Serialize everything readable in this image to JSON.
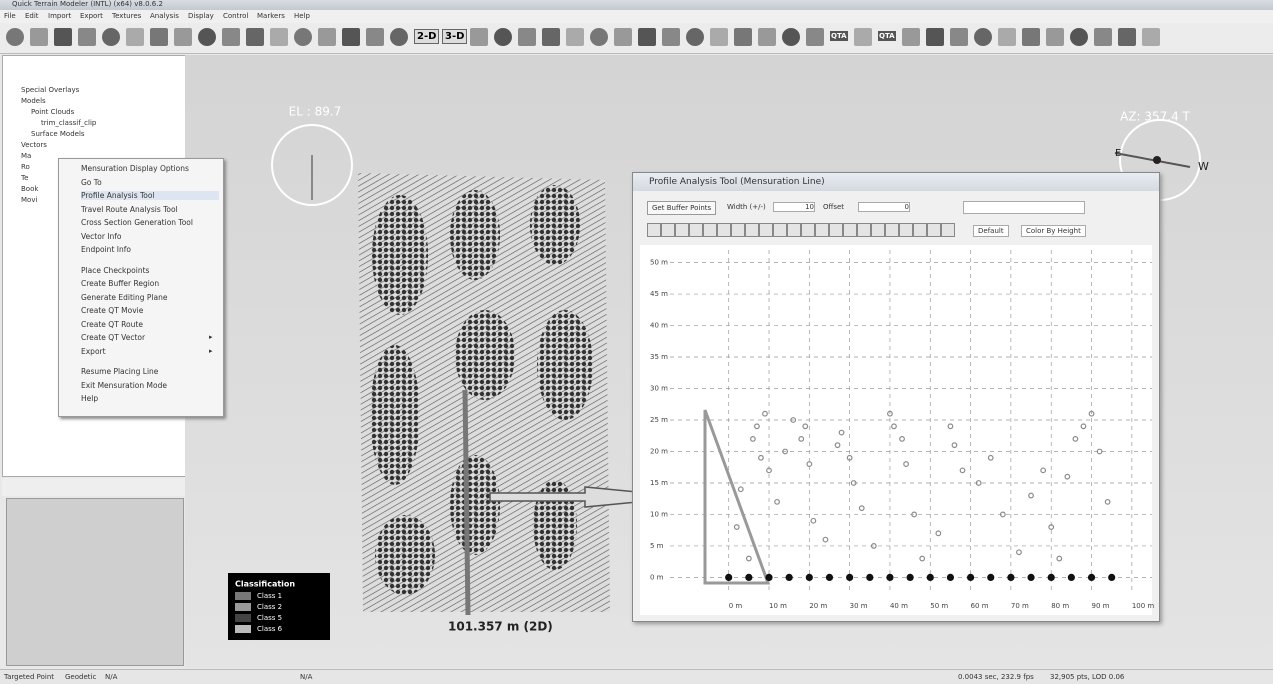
{
  "window_title": "Quick Terrain Modeler (INTL) (x64) v8.0.6.2",
  "menu": [
    "File",
    "Edit",
    "Import",
    "Export",
    "Textures",
    "Analysis",
    "Display",
    "Control",
    "Markers",
    "Help"
  ],
  "toolbar": {
    "two_d": "2-D",
    "three_d": "3-D",
    "qta1": "QTA",
    "qta2": "QTA"
  },
  "tree": [
    "Special Overlays",
    "Models",
    "Point Clouds",
    "trim_classif_clip",
    "Surface Models",
    "Vectors",
    "Ma",
    "Ro",
    "Te",
    "Book",
    "Movi"
  ],
  "context_menu": [
    "Mensuration Display Options",
    "Go To",
    "Profile Analysis Tool",
    "Travel Route Analysis Tool",
    "Cross Section Generation Tool",
    "Vector Info",
    "Endpoint Info",
    "Place Checkpoints",
    "Create Buffer Region",
    "Generate Editing Plane",
    "Create QT Movie",
    "Create QT Route",
    "Create QT Vector",
    "Export",
    "Resume Placing Line",
    "Exit Mensuration Mode",
    "Help"
  ],
  "view": {
    "elevation": "EL : 89.7",
    "azimuth": "AZ: 357.4 T",
    "east": "E",
    "west": "W",
    "measurement": "101.357 m (2D)"
  },
  "legend": {
    "title": "Classification",
    "items": [
      "Class 1",
      "Class 2",
      "Class 5",
      "Class 6"
    ]
  },
  "profile_window": {
    "title": "Profile Analysis Tool (Mensuration Line)",
    "get_buffer": "Get Buffer Points",
    "width_label": "Width (+/-)",
    "width_value": "10",
    "offset_label": "Offset",
    "offset_value": "0",
    "style": "Default",
    "color_mode": "Color By Height"
  },
  "status": [
    "Targeted Point",
    "Geodetic",
    "N/A",
    "N/A",
    "0.0043 sec, 232.9 fps",
    "32,905 pts, LOD 0.06"
  ],
  "chart_data": {
    "type": "scatter",
    "xlim": [
      -22,
      105
    ],
    "ylim": [
      -2,
      52
    ],
    "grid": true,
    "xticks": [
      {
        "value": 0,
        "label": "0 m"
      },
      {
        "value": 10,
        "label": "10 m"
      },
      {
        "value": 20,
        "label": "20 m"
      },
      {
        "value": 30,
        "label": "30 m"
      },
      {
        "value": 40,
        "label": "40 m"
      },
      {
        "value": 50,
        "label": "50 m"
      },
      {
        "value": 60,
        "label": "60 m"
      },
      {
        "value": 70,
        "label": "70 m"
      },
      {
        "value": 80,
        "label": "80 m"
      },
      {
        "value": 90,
        "label": "90 m"
      },
      {
        "value": 100,
        "label": "100 m"
      }
    ],
    "yticks": [
      {
        "value": 0,
        "label": "0 m"
      },
      {
        "value": 5,
        "label": "5 m"
      },
      {
        "value": 10,
        "label": "10 m"
      },
      {
        "value": 15,
        "label": "15 m"
      },
      {
        "value": 20,
        "label": "20 m"
      },
      {
        "value": 25,
        "label": "25 m"
      },
      {
        "value": 30,
        "label": "30 m"
      },
      {
        "value": 35,
        "label": "35 m"
      },
      {
        "value": 40,
        "label": "40 m"
      },
      {
        "value": 45,
        "label": "45 m"
      },
      {
        "value": 50,
        "label": "50 m"
      }
    ],
    "series": [
      {
        "color": "#8a8a8a",
        "x": [
          2,
          3,
          5,
          6,
          7,
          8,
          9,
          10,
          12,
          14,
          16,
          18,
          19,
          20,
          21,
          24,
          27,
          28,
          30,
          31,
          33,
          36,
          40,
          41,
          43,
          44,
          46,
          48,
          52,
          55,
          56,
          58,
          62,
          65,
          68,
          72,
          75,
          78,
          80,
          82,
          84,
          86,
          88,
          90,
          92,
          94
        ],
        "values": [
          8,
          14,
          3,
          22,
          24,
          19,
          26,
          17,
          12,
          20,
          25,
          22,
          24,
          18,
          9,
          6,
          21,
          23,
          19,
          15,
          11,
          5,
          26,
          24,
          22,
          18,
          10,
          3,
          7,
          24,
          21,
          17,
          15,
          19,
          10,
          4,
          13,
          17,
          8,
          3,
          16,
          22,
          24,
          26,
          20,
          12
        ]
      },
      {
        "color": "#111111",
        "x": [
          0,
          5,
          10,
          15,
          20,
          25,
          30,
          35,
          40,
          45,
          50,
          55,
          60,
          65,
          70,
          75,
          80,
          85,
          90,
          95
        ],
        "values": [
          0,
          0,
          0,
          0,
          0,
          0,
          0,
          0,
          0,
          0,
          0,
          0,
          0,
          0,
          0,
          0,
          0,
          0,
          0,
          0
        ]
      }
    ]
  }
}
